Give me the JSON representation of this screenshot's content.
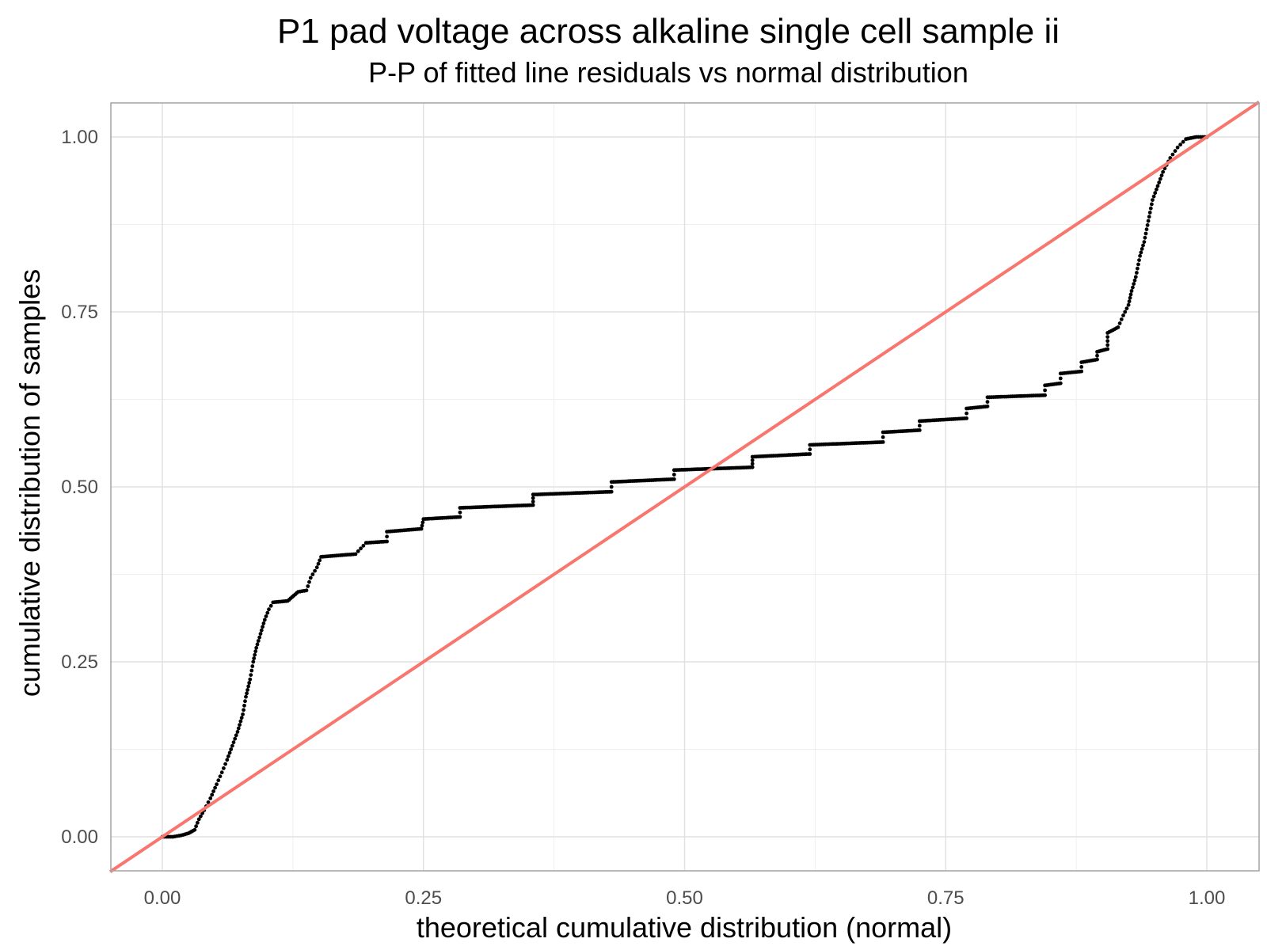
{
  "chart_data": {
    "type": "scatter",
    "title": "P1 pad voltage across alkaline single cell sample ii",
    "subtitle": "P-P of fitted line residuals vs normal distribution",
    "xlabel": "theoretical cumulative distribution (normal)",
    "ylabel": "cumulative distribution of samples",
    "xlim": [
      -0.05,
      1.05
    ],
    "ylim": [
      -0.05,
      1.05
    ],
    "x_ticks": [
      0.0,
      0.25,
      0.5,
      0.75,
      1.0
    ],
    "x_tick_labels": [
      "0.00",
      "0.25",
      "0.50",
      "0.75",
      "1.00"
    ],
    "y_ticks": [
      0.0,
      0.25,
      0.5,
      0.75,
      1.0
    ],
    "y_tick_labels": [
      "0.00",
      "0.25",
      "0.50",
      "0.75",
      "1.00"
    ],
    "grid": true,
    "point_color": "#000000",
    "reference_line_color": "#F8766D",
    "reference_line": {
      "slope": 1,
      "intercept": 0
    },
    "series": [
      {
        "type": "scatter",
        "points": [
          [
            0.0,
            0.0
          ],
          [
            0.01,
            0.0
          ],
          [
            0.018,
            0.002
          ],
          [
            0.025,
            0.005
          ],
          [
            0.031,
            0.01
          ],
          [
            0.035,
            0.025
          ],
          [
            0.04,
            0.038
          ],
          [
            0.046,
            0.055
          ],
          [
            0.052,
            0.075
          ],
          [
            0.057,
            0.092
          ],
          [
            0.062,
            0.11
          ],
          [
            0.067,
            0.13
          ],
          [
            0.072,
            0.15
          ],
          [
            0.077,
            0.175
          ],
          [
            0.08,
            0.2
          ],
          [
            0.084,
            0.225
          ],
          [
            0.087,
            0.25
          ],
          [
            0.09,
            0.27
          ],
          [
            0.094,
            0.29
          ],
          [
            0.098,
            0.31
          ],
          [
            0.102,
            0.325
          ],
          [
            0.106,
            0.335
          ],
          [
            0.12,
            0.337
          ],
          [
            0.13,
            0.35
          ],
          [
            0.138,
            0.352
          ],
          [
            0.142,
            0.37
          ],
          [
            0.148,
            0.385
          ],
          [
            0.152,
            0.4
          ],
          [
            0.185,
            0.404
          ],
          [
            0.195,
            0.42
          ],
          [
            0.215,
            0.422
          ],
          [
            0.215,
            0.436
          ],
          [
            0.248,
            0.44
          ],
          [
            0.25,
            0.454
          ],
          [
            0.285,
            0.457
          ],
          [
            0.285,
            0.47
          ],
          [
            0.355,
            0.474
          ],
          [
            0.355,
            0.489
          ],
          [
            0.43,
            0.493
          ],
          [
            0.43,
            0.507
          ],
          [
            0.49,
            0.511
          ],
          [
            0.49,
            0.524
          ],
          [
            0.565,
            0.528
          ],
          [
            0.565,
            0.543
          ],
          [
            0.62,
            0.547
          ],
          [
            0.62,
            0.56
          ],
          [
            0.69,
            0.564
          ],
          [
            0.69,
            0.578
          ],
          [
            0.725,
            0.581
          ],
          [
            0.725,
            0.594
          ],
          [
            0.77,
            0.598
          ],
          [
            0.77,
            0.612
          ],
          [
            0.79,
            0.615
          ],
          [
            0.79,
            0.628
          ],
          [
            0.845,
            0.631
          ],
          [
            0.845,
            0.645
          ],
          [
            0.86,
            0.648
          ],
          [
            0.86,
            0.662
          ],
          [
            0.88,
            0.665
          ],
          [
            0.88,
            0.678
          ],
          [
            0.895,
            0.682
          ],
          [
            0.895,
            0.693
          ],
          [
            0.905,
            0.697
          ],
          [
            0.905,
            0.72
          ],
          [
            0.915,
            0.728
          ],
          [
            0.92,
            0.745
          ],
          [
            0.925,
            0.76
          ],
          [
            0.928,
            0.78
          ],
          [
            0.932,
            0.8
          ],
          [
            0.936,
            0.83
          ],
          [
            0.94,
            0.85
          ],
          [
            0.944,
            0.88
          ],
          [
            0.948,
            0.91
          ],
          [
            0.953,
            0.93
          ],
          [
            0.958,
            0.95
          ],
          [
            0.965,
            0.97
          ],
          [
            0.972,
            0.985
          ],
          [
            0.98,
            0.997
          ],
          [
            0.99,
            1.0
          ],
          [
            1.0,
            1.0
          ]
        ]
      }
    ]
  }
}
